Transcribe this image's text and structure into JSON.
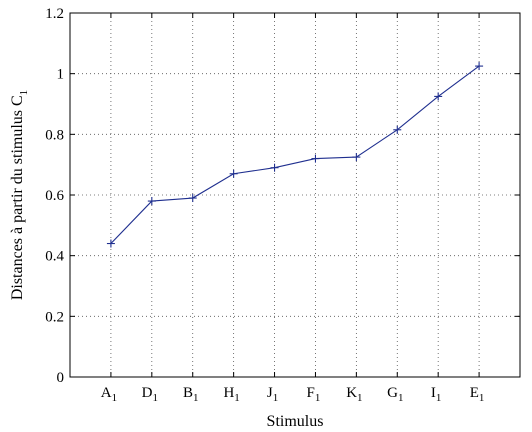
{
  "chart_data": {
    "type": "line",
    "categories": [
      {
        "base": "A",
        "sub": "1"
      },
      {
        "base": "D",
        "sub": "1"
      },
      {
        "base": "B",
        "sub": "1"
      },
      {
        "base": "H",
        "sub": "1"
      },
      {
        "base": "J",
        "sub": "1"
      },
      {
        "base": "F",
        "sub": "1"
      },
      {
        "base": "K",
        "sub": "1"
      },
      {
        "base": "G",
        "sub": "1"
      },
      {
        "base": "I",
        "sub": "1"
      },
      {
        "base": "E",
        "sub": "1"
      }
    ],
    "series": [
      {
        "values": [
          0.44,
          0.58,
          0.59,
          0.67,
          0.69,
          0.72,
          0.725,
          0.815,
          0.925,
          1.025
        ],
        "color": "#1f2f8f",
        "marker": "plus"
      }
    ],
    "xlabel": "Stimulus",
    "ylabel": {
      "text": "Distances à partir du stimulus  C",
      "sub": "1"
    },
    "ylim": [
      0,
      1.2
    ],
    "yticks": [
      "0",
      "0.2",
      "0.4",
      "0.6",
      "0.8",
      "1",
      "1.2"
    ],
    "grid": true
  }
}
